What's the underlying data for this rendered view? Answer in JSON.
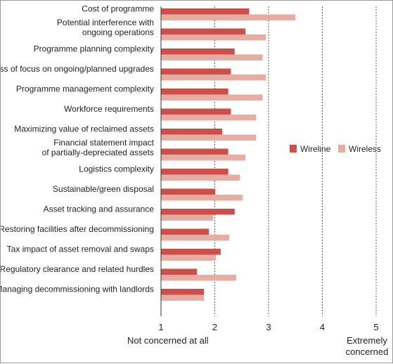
{
  "chart_data": {
    "type": "bar",
    "orientation": "horizontal",
    "categories": [
      [
        "Cost of programme"
      ],
      [
        "Potential interference with",
        "ongoing operations"
      ],
      [
        "Programme planning complexity"
      ],
      [
        "Loss of focus on ongoing/planned upgrades"
      ],
      [
        "Programme management complexity"
      ],
      [
        "Workforce requirements"
      ],
      [
        "Maximizing value of reclaimed assets"
      ],
      [
        "Financial statement impact",
        "of partially-depreciated assets"
      ],
      [
        "Logistics complexity"
      ],
      [
        "Sustainable/green disposal"
      ],
      [
        "Asset tracking and assurance"
      ],
      [
        "Restoring facilities after decommissioning"
      ],
      [
        "Tax impact of asset removal and swaps"
      ],
      [
        "Regulatory clearance and related hurdles"
      ],
      [
        "Managing decommissioning with landlords"
      ]
    ],
    "series": [
      {
        "name": "Wireline",
        "color": "#cc4f4a",
        "values": [
          2.64,
          2.57,
          2.37,
          2.3,
          2.25,
          2.3,
          2.14,
          2.25,
          2.25,
          2.01,
          2.37,
          1.89,
          2.11,
          1.67,
          1.8
        ]
      },
      {
        "name": "Wireless",
        "color": "#e8ada2",
        "values": [
          3.5,
          2.95,
          2.89,
          2.95,
          2.89,
          2.77,
          2.77,
          2.57,
          2.47,
          2.52,
          1.97,
          2.27,
          2.02,
          2.4,
          1.8
        ]
      }
    ],
    "xlim": [
      1,
      5
    ],
    "xticks": [
      "1",
      "2",
      "3",
      "4",
      "5"
    ],
    "scale_labels": {
      "low": "Not concerned at all",
      "high": [
        "Extremely",
        "concerned"
      ]
    },
    "grid": "dotted vertical lines at 2, 3, 4, 5",
    "legend_position": "right"
  }
}
